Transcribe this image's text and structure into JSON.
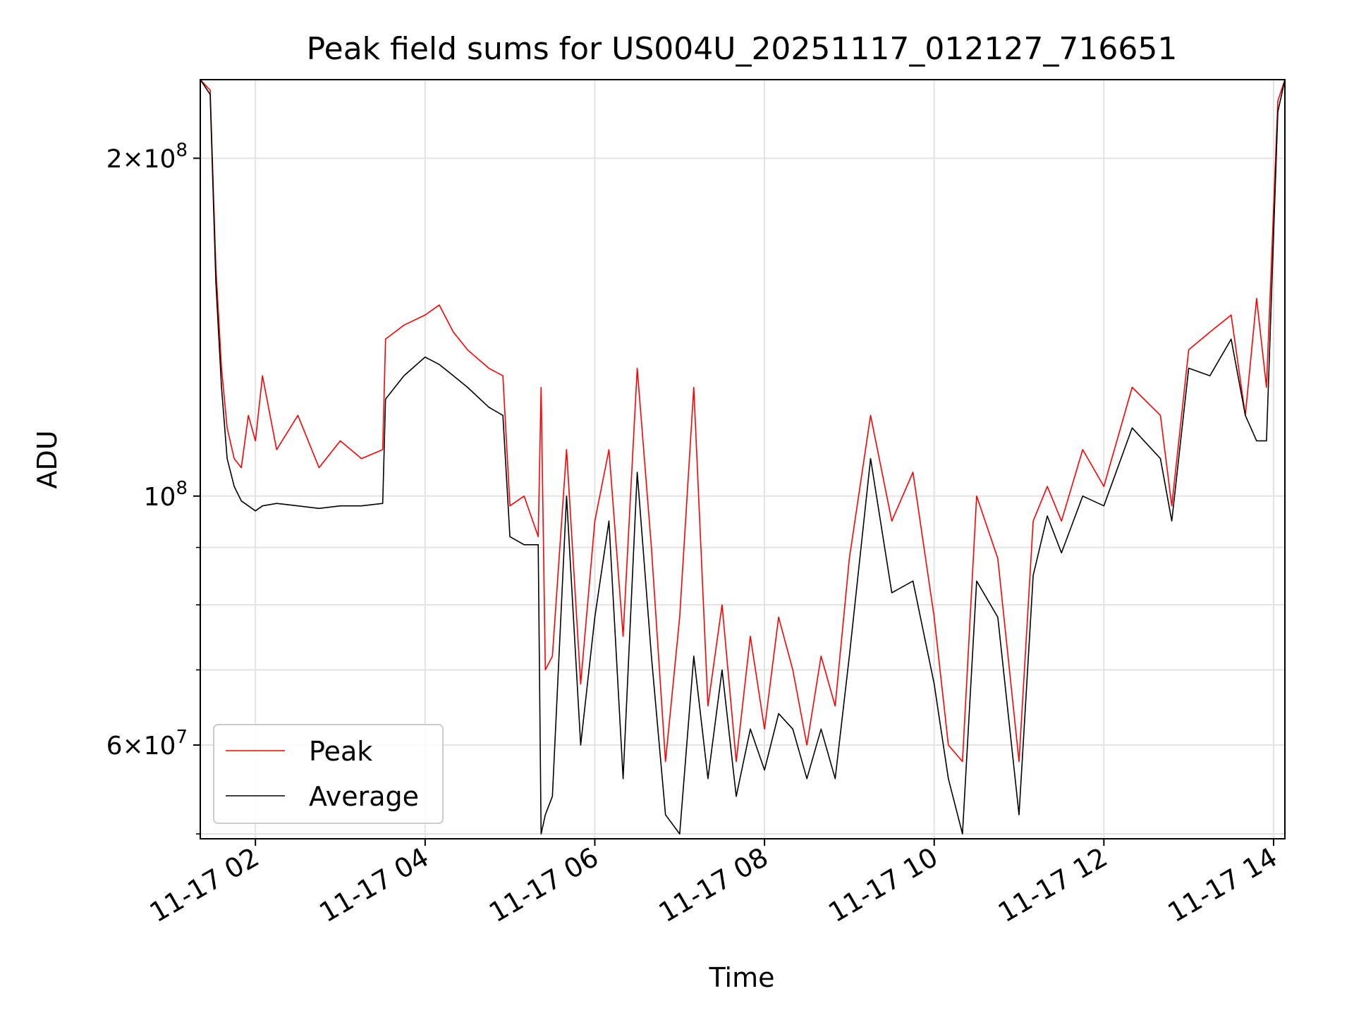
{
  "chart_data": {
    "type": "line",
    "title": "Peak field sums for US004U_20251117_012127_716651",
    "xlabel": "Time",
    "ylabel": "ADU",
    "y_scale": "log",
    "grid": true,
    "legend_placement": "lower-left",
    "xlim": [
      "2025-11-17T01:21",
      "2025-11-17T14:08"
    ],
    "ylim": [
      49500000,
      235000000
    ],
    "x_ticks": [
      {
        "value": "2025-11-17T02:00",
        "label": "11-17 02"
      },
      {
        "value": "2025-11-17T04:00",
        "label": "11-17 04"
      },
      {
        "value": "2025-11-17T06:00",
        "label": "11-17 06"
      },
      {
        "value": "2025-11-17T08:00",
        "label": "11-17 08"
      },
      {
        "value": "2025-11-17T10:00",
        "label": "11-17 10"
      },
      {
        "value": "2025-11-17T12:00",
        "label": "11-17 12"
      },
      {
        "value": "2025-11-17T14:00",
        "label": "11-17 14"
      }
    ],
    "y_ticks": [
      {
        "value": 200000000,
        "base": "2",
        "exp": "8"
      },
      {
        "value": 100000000,
        "base": "",
        "exp": "8"
      },
      {
        "value": 60000000,
        "base": "6",
        "exp": "7"
      }
    ],
    "y_minor_ticks": [
      50000000,
      70000000,
      80000000,
      90000000
    ],
    "series": [
      {
        "name": "Peak",
        "color": "#ff0000",
        "x": [
          "2025-11-17T01:21",
          "2025-11-17T01:28",
          "2025-11-17T01:32",
          "2025-11-17T01:36",
          "2025-11-17T01:40",
          "2025-11-17T01:45",
          "2025-11-17T01:50",
          "2025-11-17T01:55",
          "2025-11-17T02:00",
          "2025-11-17T02:05",
          "2025-11-17T02:15",
          "2025-11-17T02:30",
          "2025-11-17T02:45",
          "2025-11-17T03:00",
          "2025-11-17T03:15",
          "2025-11-17T03:30",
          "2025-11-17T03:32",
          "2025-11-17T03:45",
          "2025-11-17T04:00",
          "2025-11-17T04:10",
          "2025-11-17T04:20",
          "2025-11-17T04:30",
          "2025-11-17T04:45",
          "2025-11-17T04:55",
          "2025-11-17T05:00",
          "2025-11-17T05:10",
          "2025-11-17T05:20",
          "2025-11-17T05:22",
          "2025-11-17T05:25",
          "2025-11-17T05:30",
          "2025-11-17T05:40",
          "2025-11-17T05:50",
          "2025-11-17T06:00",
          "2025-11-17T06:10",
          "2025-11-17T06:20",
          "2025-11-17T06:30",
          "2025-11-17T06:40",
          "2025-11-17T06:50",
          "2025-11-17T07:00",
          "2025-11-17T07:10",
          "2025-11-17T07:20",
          "2025-11-17T07:30",
          "2025-11-17T07:40",
          "2025-11-17T07:50",
          "2025-11-17T08:00",
          "2025-11-17T08:10",
          "2025-11-17T08:20",
          "2025-11-17T08:30",
          "2025-11-17T08:40",
          "2025-11-17T08:50",
          "2025-11-17T09:00",
          "2025-11-17T09:15",
          "2025-11-17T09:30",
          "2025-11-17T09:45",
          "2025-11-17T10:00",
          "2025-11-17T10:10",
          "2025-11-17T10:20",
          "2025-11-17T10:30",
          "2025-11-17T10:45",
          "2025-11-17T11:00",
          "2025-11-17T11:10",
          "2025-11-17T11:20",
          "2025-11-17T11:30",
          "2025-11-17T11:45",
          "2025-11-17T12:00",
          "2025-11-17T12:20",
          "2025-11-17T12:40",
          "2025-11-17T12:48",
          "2025-11-17T13:00",
          "2025-11-17T13:15",
          "2025-11-17T13:30",
          "2025-11-17T13:40",
          "2025-11-17T13:48",
          "2025-11-17T13:55",
          "2025-11-17T14:03",
          "2025-11-17T14:08"
        ],
        "values": [
          235000000,
          230000000,
          160000000,
          130000000,
          115000000,
          108000000,
          106000000,
          118000000,
          112000000,
          128000000,
          110000000,
          118000000,
          106000000,
          112000000,
          108000000,
          110000000,
          138000000,
          142000000,
          145000000,
          148000000,
          140000000,
          135000000,
          130000000,
          128000000,
          98000000,
          100000000,
          92000000,
          125000000,
          70000000,
          72000000,
          110000000,
          68000000,
          95000000,
          110000000,
          75000000,
          130000000,
          90000000,
          58000000,
          78000000,
          125000000,
          65000000,
          80000000,
          58000000,
          75000000,
          62000000,
          78000000,
          70000000,
          60000000,
          72000000,
          65000000,
          88000000,
          118000000,
          95000000,
          105000000,
          78000000,
          60000000,
          58000000,
          100000000,
          88000000,
          58000000,
          95000000,
          102000000,
          95000000,
          110000000,
          102000000,
          125000000,
          118000000,
          98000000,
          135000000,
          140000000,
          145000000,
          118000000,
          150000000,
          125000000,
          225000000,
          235000000
        ]
      },
      {
        "name": "Average",
        "color": "#000000",
        "x": [
          "2025-11-17T01:21",
          "2025-11-17T01:28",
          "2025-11-17T01:32",
          "2025-11-17T01:36",
          "2025-11-17T01:40",
          "2025-11-17T01:45",
          "2025-11-17T01:50",
          "2025-11-17T01:55",
          "2025-11-17T02:00",
          "2025-11-17T02:05",
          "2025-11-17T02:15",
          "2025-11-17T02:30",
          "2025-11-17T02:45",
          "2025-11-17T03:00",
          "2025-11-17T03:15",
          "2025-11-17T03:30",
          "2025-11-17T03:32",
          "2025-11-17T03:45",
          "2025-11-17T04:00",
          "2025-11-17T04:10",
          "2025-11-17T04:20",
          "2025-11-17T04:30",
          "2025-11-17T04:45",
          "2025-11-17T04:55",
          "2025-11-17T05:00",
          "2025-11-17T05:10",
          "2025-11-17T05:20",
          "2025-11-17T05:22",
          "2025-11-17T05:25",
          "2025-11-17T05:30",
          "2025-11-17T05:40",
          "2025-11-17T05:50",
          "2025-11-17T06:00",
          "2025-11-17T06:10",
          "2025-11-17T06:20",
          "2025-11-17T06:30",
          "2025-11-17T06:40",
          "2025-11-17T06:50",
          "2025-11-17T07:00",
          "2025-11-17T07:10",
          "2025-11-17T07:20",
          "2025-11-17T07:30",
          "2025-11-17T07:40",
          "2025-11-17T07:50",
          "2025-11-17T08:00",
          "2025-11-17T08:10",
          "2025-11-17T08:20",
          "2025-11-17T08:30",
          "2025-11-17T08:40",
          "2025-11-17T08:50",
          "2025-11-17T09:00",
          "2025-11-17T09:15",
          "2025-11-17T09:30",
          "2025-11-17T09:45",
          "2025-11-17T10:00",
          "2025-11-17T10:10",
          "2025-11-17T10:20",
          "2025-11-17T10:30",
          "2025-11-17T10:45",
          "2025-11-17T11:00",
          "2025-11-17T11:10",
          "2025-11-17T11:20",
          "2025-11-17T11:30",
          "2025-11-17T11:45",
          "2025-11-17T12:00",
          "2025-11-17T12:20",
          "2025-11-17T12:40",
          "2025-11-17T12:48",
          "2025-11-17T13:00",
          "2025-11-17T13:15",
          "2025-11-17T13:30",
          "2025-11-17T13:40",
          "2025-11-17T13:48",
          "2025-11-17T13:55",
          "2025-11-17T14:03",
          "2025-11-17T14:08"
        ],
        "values": [
          235000000,
          228000000,
          155000000,
          125000000,
          108000000,
          102000000,
          99000000,
          98000000,
          97000000,
          98000000,
          98500000,
          98000000,
          97500000,
          98000000,
          98000000,
          98500000,
          122000000,
          128000000,
          133000000,
          131000000,
          128000000,
          125000000,
          120000000,
          118000000,
          92000000,
          90500000,
          90500000,
          50000000,
          52000000,
          54000000,
          100000000,
          60000000,
          78000000,
          95000000,
          56000000,
          105000000,
          72000000,
          52000000,
          50000000,
          72000000,
          56000000,
          70000000,
          54000000,
          62000000,
          57000000,
          64000000,
          62000000,
          56000000,
          62000000,
          56000000,
          72000000,
          108000000,
          82000000,
          84000000,
          68000000,
          56000000,
          50000000,
          84000000,
          78000000,
          52000000,
          85000000,
          96000000,
          89000000,
          100000000,
          98000000,
          115000000,
          108000000,
          95000000,
          130000000,
          128000000,
          138000000,
          118000000,
          112000000,
          112000000,
          220000000,
          235000000
        ]
      }
    ]
  }
}
